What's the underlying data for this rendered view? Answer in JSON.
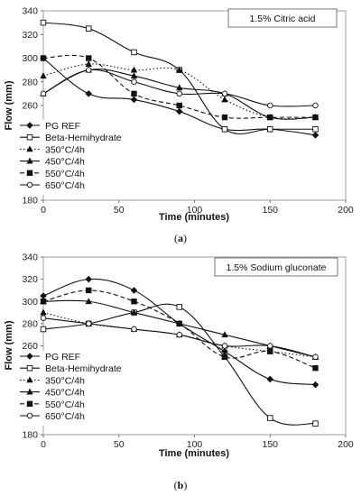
{
  "chart_data": [
    {
      "type": "line",
      "panel_label": "a",
      "annotation": "1.5% Citric acid",
      "xlabel": "Time (minutes)",
      "ylabel": "Flow (mm)",
      "xlim": [
        0,
        200
      ],
      "ylim": [
        180,
        340
      ],
      "xticks": [
        0,
        50,
        100,
        150,
        200
      ],
      "yticks": [
        180,
        200,
        220,
        240,
        260,
        280,
        300,
        320,
        340
      ],
      "grid": false,
      "legend_position": "bottom-left",
      "series": [
        {
          "name": "PG REF",
          "marker": "diamond",
          "dash": "solid",
          "x": [
            0,
            30,
            60,
            90,
            120,
            150,
            180
          ],
          "y": [
            300,
            270,
            265,
            255,
            240,
            240,
            235
          ]
        },
        {
          "name": "Beta-Hemihydrate",
          "marker": "square-open",
          "dash": "solid",
          "x": [
            0,
            30,
            60,
            90,
            120,
            150,
            180
          ],
          "y": [
            330,
            325,
            305,
            290,
            240,
            240,
            240
          ]
        },
        {
          "name": "350°C/4h",
          "marker": "triangle",
          "dash": "dotted",
          "x": [
            0,
            30,
            60,
            90,
            120,
            150,
            180
          ],
          "y": [
            285,
            295,
            290,
            290,
            265,
            250,
            250
          ]
        },
        {
          "name": "450°C/4h",
          "marker": "triangle",
          "dash": "solid",
          "x": [
            0,
            30,
            60,
            90,
            120,
            150,
            180
          ],
          "y": [
            270,
            290,
            285,
            275,
            270,
            250,
            250
          ]
        },
        {
          "name": "550°C/4h",
          "marker": "square",
          "dash": "dashed",
          "x": [
            0,
            30,
            60,
            90,
            120,
            150,
            180
          ],
          "y": [
            300,
            300,
            270,
            260,
            250,
            250,
            250
          ]
        },
        {
          "name": "650°C/4h",
          "marker": "circle-open",
          "dash": "solid",
          "x": [
            0,
            30,
            60,
            90,
            120,
            150,
            180
          ],
          "y": [
            270,
            290,
            280,
            270,
            270,
            260,
            260
          ]
        }
      ]
    },
    {
      "type": "line",
      "panel_label": "b",
      "annotation": "1.5% Sodium gluconate",
      "xlabel": "Time (minutes)",
      "ylabel": "Flow (mm)",
      "xlim": [
        0,
        200
      ],
      "ylim": [
        180,
        340
      ],
      "xticks": [
        0,
        50,
        100,
        150,
        200
      ],
      "yticks": [
        180,
        200,
        220,
        240,
        260,
        280,
        300,
        320,
        340
      ],
      "grid": false,
      "legend_position": "bottom-left",
      "series": [
        {
          "name": "PG REF",
          "marker": "diamond",
          "dash": "solid",
          "x": [
            0,
            30,
            60,
            90,
            120,
            150,
            180
          ],
          "y": [
            305,
            320,
            310,
            280,
            255,
            230,
            225
          ]
        },
        {
          "name": "Beta-Hemihydrate",
          "marker": "square-open",
          "dash": "solid",
          "x": [
            0,
            30,
            60,
            90,
            120,
            150,
            180
          ],
          "y": [
            275,
            280,
            290,
            295,
            250,
            195,
            190
          ]
        },
        {
          "name": "350°C/4h",
          "marker": "triangle",
          "dash": "dotted",
          "x": [
            0,
            30,
            60,
            90,
            120,
            150,
            180
          ],
          "y": [
            290,
            280,
            275,
            270,
            260,
            255,
            250
          ]
        },
        {
          "name": "450°C/4h",
          "marker": "triangle",
          "dash": "solid",
          "x": [
            0,
            30,
            60,
            90,
            120,
            150,
            180
          ],
          "y": [
            300,
            300,
            290,
            280,
            270,
            260,
            250
          ]
        },
        {
          "name": "550°C/4h",
          "marker": "square",
          "dash": "dashed",
          "x": [
            0,
            30,
            60,
            90,
            120,
            150,
            180
          ],
          "y": [
            300,
            310,
            300,
            280,
            250,
            255,
            240
          ]
        },
        {
          "name": "650°C/4h",
          "marker": "circle-open",
          "dash": "solid",
          "x": [
            0,
            30,
            60,
            90,
            120,
            150,
            180
          ],
          "y": [
            285,
            280,
            275,
            270,
            260,
            260,
            250
          ]
        }
      ]
    }
  ]
}
